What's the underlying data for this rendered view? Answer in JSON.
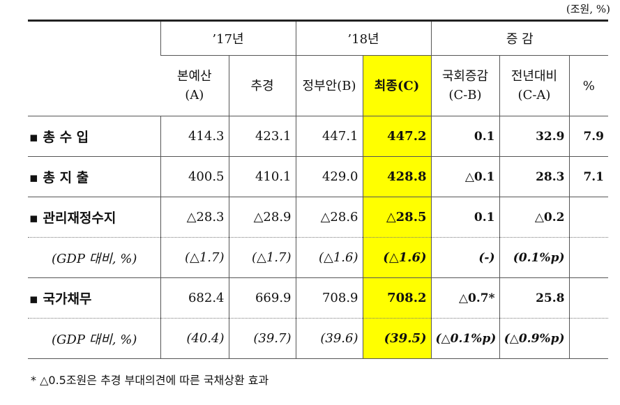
{
  "unit": "(조원, %)",
  "table": {
    "groups": [
      "’17년",
      "’18년",
      "증 감"
    ],
    "columns": [
      [
        "본예산",
        "(A)"
      ],
      [
        "추경"
      ],
      [
        "정부안(B)"
      ],
      [
        "최종(C)"
      ],
      [
        "국회증감",
        "(C-B)"
      ],
      [
        "전년대비",
        "(C-A)"
      ],
      [
        "%"
      ]
    ],
    "rows": [
      {
        "label": "▪ 총 수 입",
        "cells": [
          "414.3",
          "423.1",
          "447.1",
          "447.2",
          "0.1",
          "32.9",
          "7.9"
        ]
      },
      {
        "label": "▪ 총 지 출",
        "cells": [
          "400.5",
          "410.1",
          "429.0",
          "428.8",
          "△0.1",
          "28.3",
          "7.1"
        ]
      },
      {
        "label": "▪ 관리재정수지",
        "cells": [
          "△28.3",
          "△28.9",
          "△28.6",
          "△28.5",
          "0.1",
          "△0.2"
        ]
      },
      {
        "label": "(GDP 대비, %)",
        "cells": [
          "(△1.7)",
          "(△1.7)",
          "(△1.6)",
          "(△1.6)",
          "(-)",
          "(0.1%p)"
        ]
      },
      {
        "label": "▪ 국가채무",
        "cells": [
          "682.4",
          "669.9",
          "708.9",
          "708.2",
          "△0.7*",
          "25.8"
        ]
      },
      {
        "label": "(GDP 대비, %)",
        "cells": [
          "(40.4)",
          "(39.7)",
          "(39.6)",
          "(39.5)",
          "(△0.1%p)",
          "(△0.9%p)"
        ]
      }
    ]
  },
  "footnote": "* △0.5조원은 추경 부대의견에 따른 국채상환 효과"
}
